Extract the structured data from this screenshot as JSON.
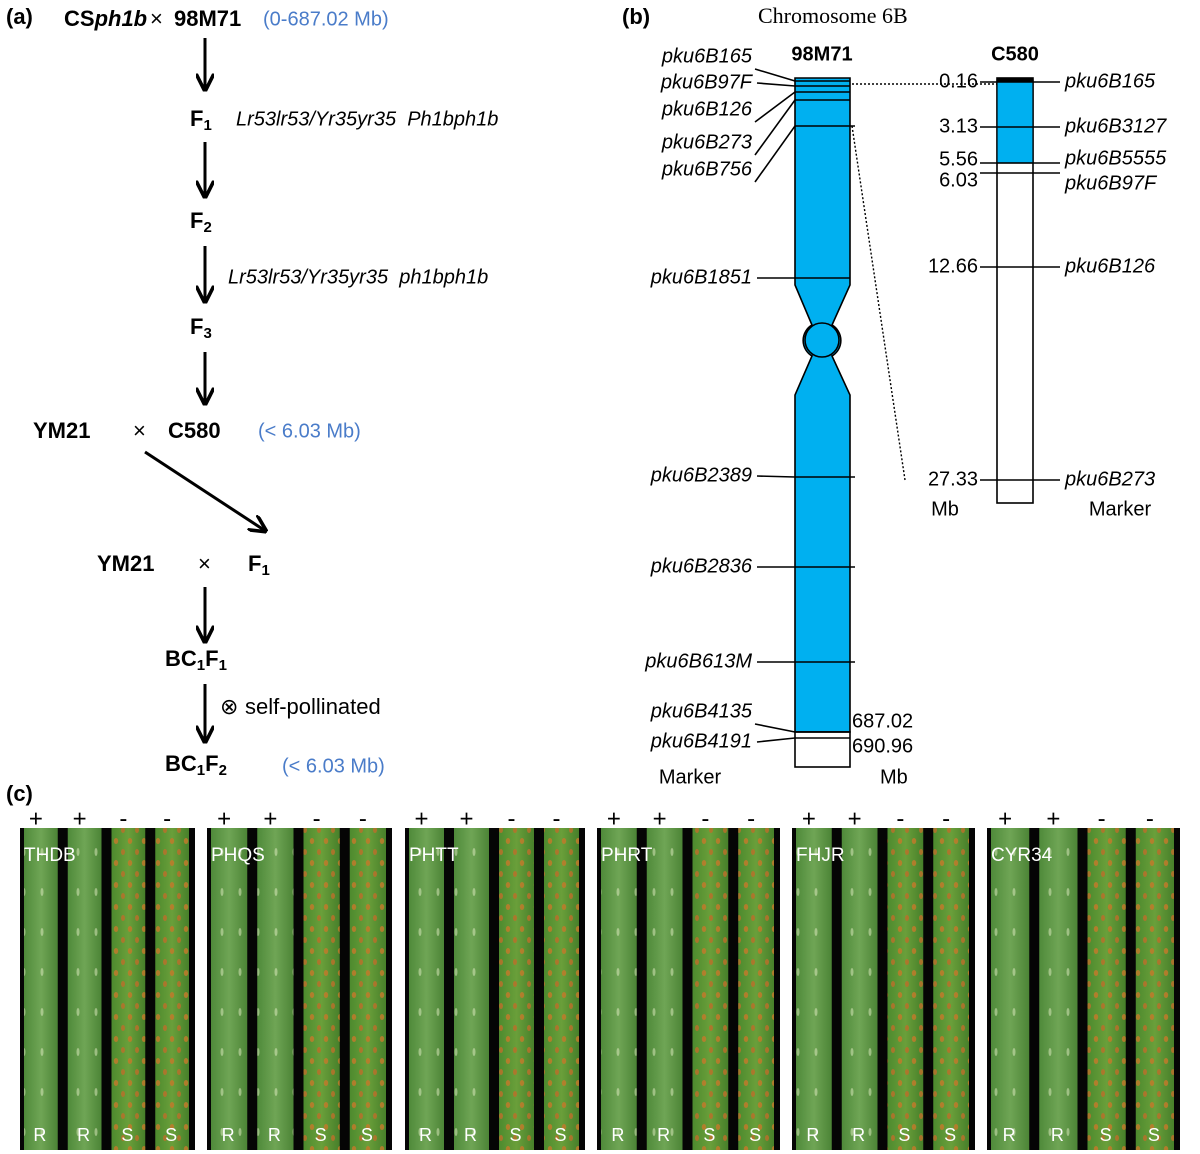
{
  "panel_a": {
    "label": "(a)",
    "cross_1": {
      "parent_1_prefix": "CS",
      "parent_1_italic": "ph1b",
      "symbol": "×",
      "parent_2": "98M71",
      "note": "(0-687.02 Mb)"
    },
    "f1": {
      "base": "F",
      "sub": "1",
      "genotype": "Lr53lr53/Yr35yr35  Ph1bph1b"
    },
    "f2": {
      "base": "F",
      "sub": "2",
      "genotype": "Lr53lr53/Yr35yr35  ph1bph1b"
    },
    "f3": {
      "base": "F",
      "sub": "3"
    },
    "cross_2": {
      "parent_1": "YM21",
      "symbol": "×",
      "parent_2": "C580",
      "note": "(< 6.03 Mb)"
    },
    "cross_3": {
      "parent_1": "YM21",
      "symbol": "×",
      "parent_2_base": "F",
      "parent_2_sub": "1"
    },
    "bc1f1": [
      "BC",
      "1",
      "F",
      "1"
    ],
    "selfing": {
      "symbol": "⊗",
      "text": "self-pollinated"
    },
    "bc1f2": {
      "parts": [
        "BC",
        "1",
        "F",
        "2"
      ],
      "note": "(< 6.03 Mb)"
    }
  },
  "panel_b": {
    "label": "(b)",
    "title": "Chromosome 6B",
    "chr_98m71": {
      "name": "98M71",
      "markers": [
        "pku6B165",
        "pku6B97F",
        "pku6B126",
        "pku6B273",
        "pku6B756",
        "pku6B1851",
        "pku6B2389",
        "pku6B2836",
        "pku6B613M",
        "pku6B4135",
        "pku6B4191"
      ],
      "positions": [
        "687.02",
        "690.96"
      ],
      "unit": "Mb",
      "axis_label": "Marker"
    },
    "chr_c580": {
      "name": "C580",
      "loci": [
        {
          "position": "0.16",
          "marker": "pku6B165"
        },
        {
          "position": "3.13",
          "marker": "pku6B3127"
        },
        {
          "position": "5.56",
          "marker": "pku6B5555"
        },
        {
          "position": "6.03",
          "marker": "pku6B97F"
        },
        {
          "position": "12.66",
          "marker": "pku6B126"
        },
        {
          "position": "27.33",
          "marker": "pku6B273"
        }
      ],
      "unit": "Mb",
      "axis_label": "Marker"
    }
  },
  "panel_c": {
    "label": "(c)",
    "panels": [
      {
        "name": "THDB",
        "signs": [
          "+",
          "+",
          "-",
          "-"
        ],
        "phenotypes": [
          "R",
          "R",
          "S",
          "S"
        ]
      },
      {
        "name": "PHQS",
        "signs": [
          "+",
          "+",
          "-",
          "-"
        ],
        "phenotypes": [
          "R",
          "R",
          "S",
          "S"
        ]
      },
      {
        "name": "PHTT",
        "signs": [
          "+",
          "+",
          "-",
          "-"
        ],
        "phenotypes": [
          "R",
          "R",
          "S",
          "S"
        ]
      },
      {
        "name": "PHRT",
        "signs": [
          "+",
          "+",
          "-",
          "-"
        ],
        "phenotypes": [
          "R",
          "R",
          "S",
          "S"
        ]
      },
      {
        "name": "FHJR",
        "signs": [
          "+",
          "+",
          "-",
          "-"
        ],
        "phenotypes": [
          "R",
          "R",
          "S",
          "S"
        ]
      },
      {
        "name": "CYR34",
        "signs": [
          "+",
          "+",
          "-",
          "-"
        ],
        "phenotypes": [
          "R",
          "R",
          "S",
          "S"
        ]
      }
    ]
  }
}
